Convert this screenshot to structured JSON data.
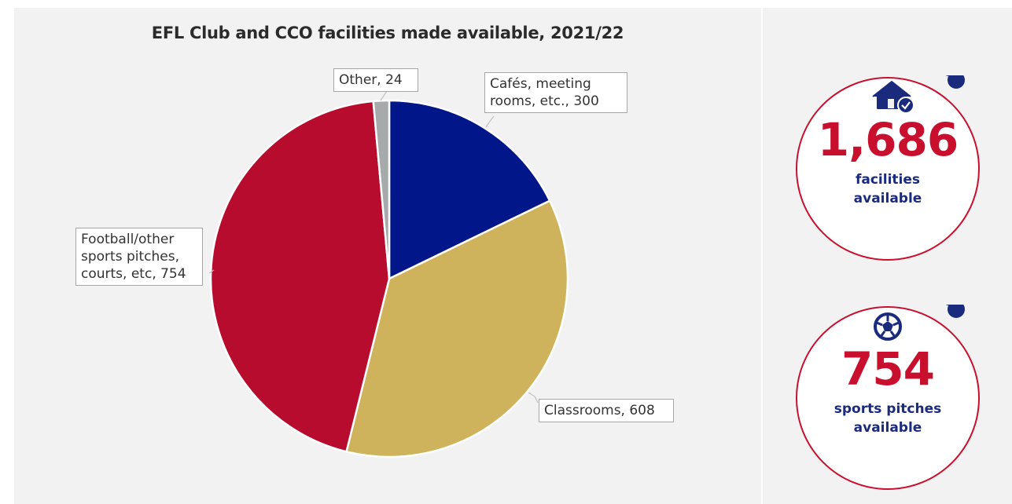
{
  "chart_data": {
    "type": "pie",
    "title": "EFL Club and CCO facilities made available, 2021/22",
    "slices": [
      {
        "label": "Cafés, meeting rooms, etc., 300",
        "value": 300,
        "color": "#001689"
      },
      {
        "label": "Classrooms, 608",
        "value": 608,
        "color": "#cfb35c"
      },
      {
        "label": "Football/other sports pitches, courts, etc, 754",
        "value": 754,
        "color": "#b70c2e"
      },
      {
        "label": "Other, 24",
        "value": 24,
        "color": "#a7aaaa"
      }
    ]
  },
  "callouts": {
    "cafes": [
      "Cafés, meeting",
      "rooms, etc., 300"
    ],
    "classrooms": [
      "Classrooms, 608"
    ],
    "football": [
      "Football/other",
      "sports pitches,",
      "courts, etc, 754"
    ],
    "other": [
      "Other, 24"
    ]
  },
  "stats": [
    {
      "number": "1,686",
      "label_line1": "facilities",
      "label_line2": "available",
      "icon": "house-check-icon"
    },
    {
      "number": "754",
      "label_line1": "sports pitches",
      "label_line2": "available",
      "icon": "football-icon"
    }
  ],
  "colors": {
    "navy": "#1a2a7c",
    "red": "#c8102e"
  }
}
